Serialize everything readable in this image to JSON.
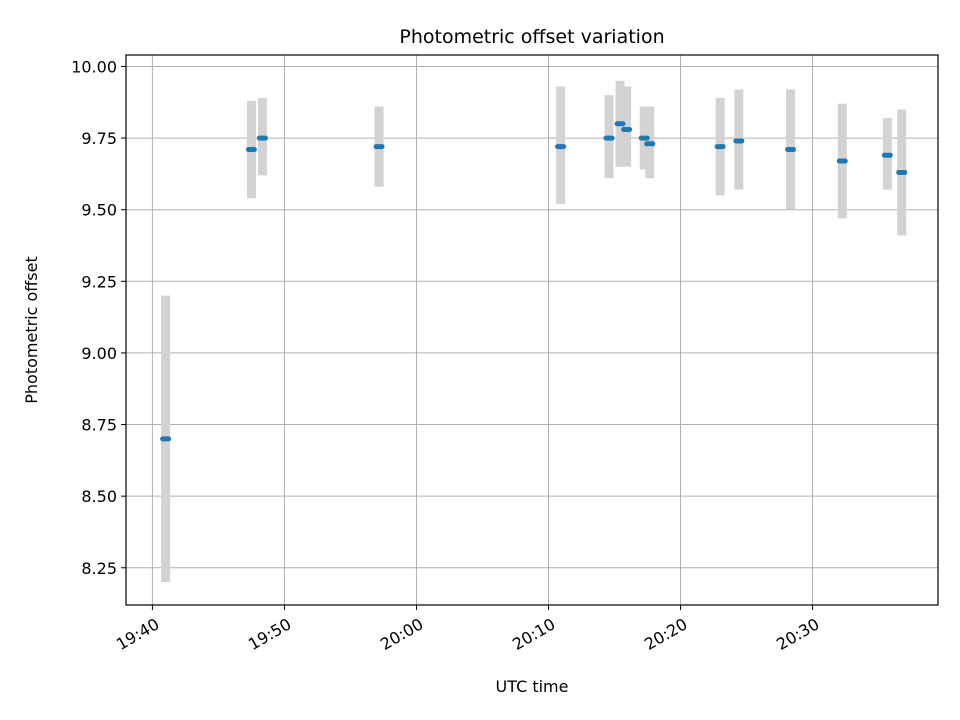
{
  "chart_data": {
    "type": "scatter",
    "title": "Photometric offset variation",
    "xlabel": "UTC time",
    "ylabel": "Photometric offset",
    "grid": true,
    "colors": {
      "point": "#1f77b4",
      "errorbar": "#d3d3d3",
      "grid": "#b0b0b0"
    },
    "xlim": [
      "19:38:00",
      "20:39:30"
    ],
    "ylim": [
      8.12,
      10.04
    ],
    "x_ticks": [
      "19:40",
      "19:50",
      "20:00",
      "20:10",
      "20:20",
      "20:30"
    ],
    "y_ticks": [
      "8.25",
      "8.50",
      "8.75",
      "9.00",
      "9.25",
      "9.50",
      "9.75",
      "10.00"
    ],
    "points": [
      {
        "x": "19:41:00",
        "y": 8.7,
        "ylow": 8.2,
        "yhigh": 9.2
      },
      {
        "x": "19:47:30",
        "y": 9.71,
        "ylow": 9.54,
        "yhigh": 9.88
      },
      {
        "x": "19:48:20",
        "y": 9.75,
        "ylow": 9.62,
        "yhigh": 9.89
      },
      {
        "x": "19:57:10",
        "y": 9.72,
        "ylow": 9.58,
        "yhigh": 9.86
      },
      {
        "x": "20:10:55",
        "y": 9.72,
        "ylow": 9.52,
        "yhigh": 9.93
      },
      {
        "x": "20:14:35",
        "y": 9.75,
        "ylow": 9.61,
        "yhigh": 9.9
      },
      {
        "x": "20:15:25",
        "y": 9.8,
        "ylow": 9.65,
        "yhigh": 9.95
      },
      {
        "x": "20:15:55",
        "y": 9.78,
        "ylow": 9.65,
        "yhigh": 9.93
      },
      {
        "x": "20:17:15",
        "y": 9.75,
        "ylow": 9.64,
        "yhigh": 9.86
      },
      {
        "x": "20:17:40",
        "y": 9.73,
        "ylow": 9.61,
        "yhigh": 9.86
      },
      {
        "x": "20:23:00",
        "y": 9.72,
        "ylow": 9.55,
        "yhigh": 9.89
      },
      {
        "x": "20:24:25",
        "y": 9.74,
        "ylow": 9.57,
        "yhigh": 9.92
      },
      {
        "x": "20:28:20",
        "y": 9.71,
        "ylow": 9.5,
        "yhigh": 9.92
      },
      {
        "x": "20:32:15",
        "y": 9.67,
        "ylow": 9.47,
        "yhigh": 9.87
      },
      {
        "x": "20:35:40",
        "y": 9.69,
        "ylow": 9.57,
        "yhigh": 9.82
      },
      {
        "x": "20:36:45",
        "y": 9.63,
        "ylow": 9.41,
        "yhigh": 9.85
      }
    ]
  }
}
